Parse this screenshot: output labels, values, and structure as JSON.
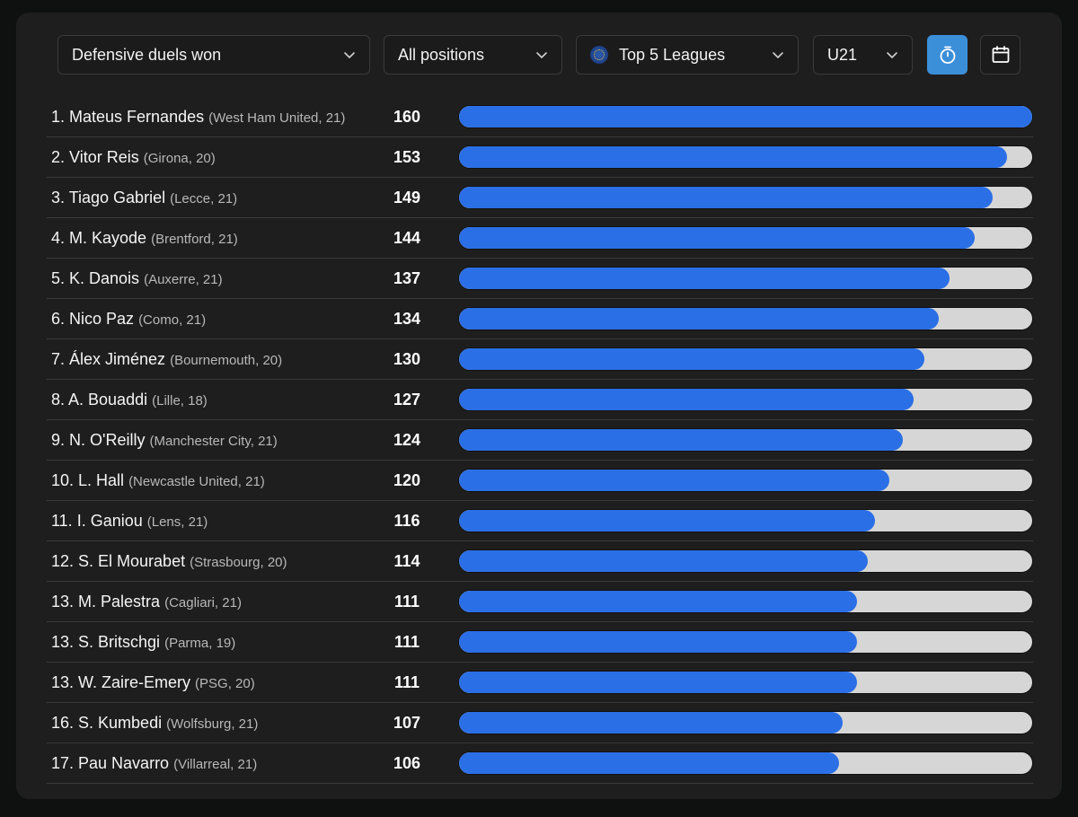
{
  "filters": {
    "metric": "Defensive duels won",
    "position": "All positions",
    "competition": "Top 5 Leagues",
    "age_group": "U21"
  },
  "icons": {
    "timer": "stopwatch-icon",
    "calendar": "calendar-icon",
    "league": "league-badge-icon",
    "chevron": "chevron-down-icon"
  },
  "colors": {
    "bar": "#2b6fe6",
    "track": "#d6d6d6",
    "active_button": "#3b8fd9"
  },
  "max_value": 160,
  "players": [
    {
      "rank": "1. Mateus Fernandes",
      "meta": "(West Ham United, 21)",
      "value": 160
    },
    {
      "rank": "2. Vitor Reis",
      "meta": "(Girona, 20)",
      "value": 153
    },
    {
      "rank": "3. Tiago Gabriel",
      "meta": "(Lecce, 21)",
      "value": 149
    },
    {
      "rank": "4. M. Kayode",
      "meta": "(Brentford, 21)",
      "value": 144
    },
    {
      "rank": "5. K. Danois",
      "meta": "(Auxerre, 21)",
      "value": 137
    },
    {
      "rank": "6. Nico Paz",
      "meta": "(Como, 21)",
      "value": 134
    },
    {
      "rank": "7. Álex Jiménez",
      "meta": "(Bournemouth, 20)",
      "value": 130
    },
    {
      "rank": "8. A. Bouaddi",
      "meta": "(Lille, 18)",
      "value": 127
    },
    {
      "rank": "9. N. O'Reilly",
      "meta": "(Manchester City, 21)",
      "value": 124
    },
    {
      "rank": "10. L. Hall",
      "meta": "(Newcastle United, 21)",
      "value": 120
    },
    {
      "rank": "11. I. Ganiou",
      "meta": "(Lens, 21)",
      "value": 116
    },
    {
      "rank": "12. S. El Mourabet",
      "meta": "(Strasbourg, 20)",
      "value": 114
    },
    {
      "rank": "13. M. Palestra",
      "meta": "(Cagliari, 21)",
      "value": 111
    },
    {
      "rank": "13. S. Britschgi",
      "meta": "(Parma, 19)",
      "value": 111
    },
    {
      "rank": "13. W. Zaire-Emery",
      "meta": "(PSG, 20)",
      "value": 111
    },
    {
      "rank": "16. S. Kumbedi",
      "meta": "(Wolfsburg, 21)",
      "value": 107
    },
    {
      "rank": "17. Pau Navarro",
      "meta": "(Villarreal, 21)",
      "value": 106
    }
  ]
}
